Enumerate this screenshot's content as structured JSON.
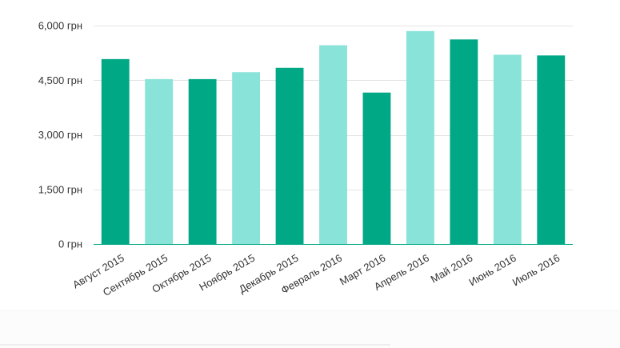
{
  "chart_data": {
    "type": "bar",
    "title": "",
    "xlabel": "",
    "ylabel": "",
    "categories": [
      "Август 2015",
      "Сентябрь 2015",
      "Октябрь 2015",
      "Ноябрь 2015",
      "Декабрь 2015",
      "Февраль 2016",
      "Март 2016",
      "Апрель 2016",
      "Май 2016",
      "Июнь 2016",
      "Июль 2016"
    ],
    "values": [
      5080,
      4530,
      4530,
      4720,
      4840,
      5460,
      4160,
      5850,
      5620,
      5200,
      5180
    ],
    "ylim": [
      0,
      6000
    ],
    "yticks": [
      0,
      1500,
      3000,
      4500,
      6000
    ],
    "ytick_labels": [
      "0 грн",
      "1,500 грн",
      "3,000 грн",
      "4,500 грн",
      "6,000 грн"
    ],
    "grid": true,
    "legend": "none",
    "colors": {
      "dark": "#00a886",
      "light": "#89e3d8",
      "grid": "#e3e3e3",
      "axis": "#00a886"
    },
    "bar_color_pattern": [
      "dark",
      "light",
      "dark",
      "light",
      "dark",
      "light",
      "dark",
      "light",
      "dark",
      "light",
      "dark"
    ]
  }
}
